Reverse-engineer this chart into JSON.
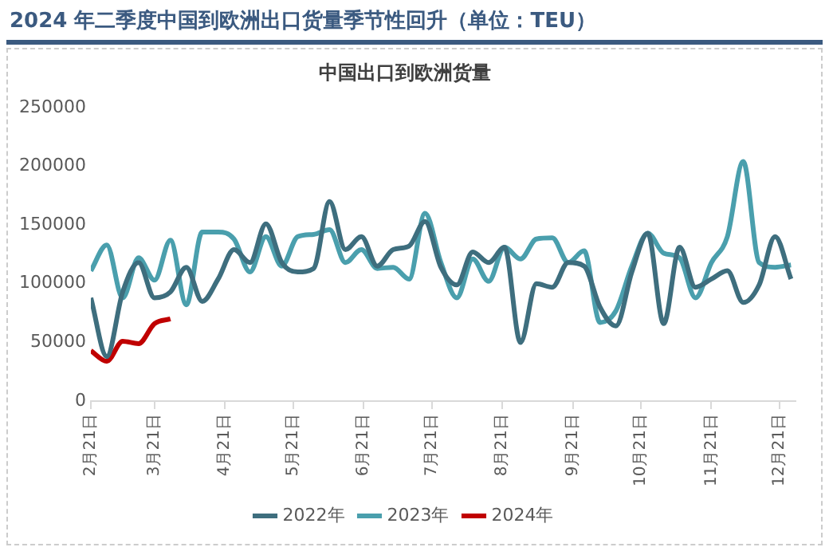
{
  "chart_data": {
    "type": "line",
    "title": "2024 年二季度中国到欧洲出口货量季节性回升（单位：TEU）",
    "subtitle": "中国出口到欧洲货量",
    "x": [
      "--02-21",
      "--02-28",
      "--03-07",
      "--03-14",
      "--03-21",
      "--03-28",
      "--04-04",
      "--04-11",
      "--04-18",
      "--04-25",
      "--05-02",
      "--05-09",
      "--05-16",
      "--05-23",
      "--05-30",
      "--06-06",
      "--06-13",
      "--06-20",
      "--06-27",
      "--07-04",
      "--07-11",
      "--07-18",
      "--07-25",
      "--08-01",
      "--08-08",
      "--08-15",
      "--08-22",
      "--08-29",
      "--09-05",
      "--09-12",
      "--09-19",
      "--09-26",
      "--10-03",
      "--10-10",
      "--10-17",
      "--10-24",
      "--10-31",
      "--11-07",
      "--11-14",
      "--11-21",
      "--11-28",
      "--12-05",
      "--12-12",
      "--12-19",
      "--12-26"
    ],
    "series": [
      {
        "name": "2022年",
        "color": "#3e6e7e",
        "values": [
          88000,
          38000,
          93000,
          118000,
          88000,
          93000,
          114000,
          85000,
          104000,
          129000,
          118000,
          151000,
          118000,
          110000,
          113000,
          170000,
          129000,
          140000,
          115000,
          129000,
          132000,
          153000,
          114000,
          99000,
          127000,
          118000,
          131000,
          50000,
          100000,
          97000,
          118000,
          115000,
          80000,
          64000,
          110000,
          143000,
          66000,
          131000,
          97000,
          104000,
          111000,
          84000,
          99000,
          140000,
          104000
        ]
      },
      {
        "name": "2023年",
        "color": "#4a9fad",
        "values": [
          111000,
          133000,
          88000,
          122000,
          103000,
          137000,
          82000,
          144000,
          144000,
          138000,
          110000,
          140000,
          115000,
          140000,
          142000,
          146000,
          118000,
          129000,
          113000,
          114000,
          104000,
          160000,
          118000,
          88000,
          121000,
          102000,
          131000,
          121000,
          138000,
          139000,
          118000,
          128000,
          67000,
          77000,
          115000,
          143000,
          126000,
          122000,
          88000,
          118000,
          140000,
          204000,
          118000,
          114000,
          116000
        ]
      },
      {
        "name": "2024年",
        "color": "#c00000",
        "x": [
          "--02-21",
          "--02-28",
          "--03-07",
          "--03-14",
          "--03-21",
          "--03-28"
        ],
        "values": [
          43000,
          34000,
          51000,
          49000,
          66000,
          70000
        ]
      }
    ],
    "xlim": [
      "--02-21",
      "--12-28"
    ],
    "xticks": [
      {
        "value": "--02-21",
        "label": "2月21日"
      },
      {
        "value": "--03-21",
        "label": "3月21日"
      },
      {
        "value": "--04-21",
        "label": "4月21日"
      },
      {
        "value": "--05-21",
        "label": "5月21日"
      },
      {
        "value": "--06-21",
        "label": "6月21日"
      },
      {
        "value": "--07-21",
        "label": "7月21日"
      },
      {
        "value": "--08-21",
        "label": "8月21日"
      },
      {
        "value": "--09-21",
        "label": "9月21日"
      },
      {
        "value": "--10-21",
        "label": "10月21日"
      },
      {
        "value": "--11-21",
        "label": "11月21日"
      },
      {
        "value": "--12-21",
        "label": "12月21日"
      }
    ],
    "ylim": [
      0,
      250000
    ],
    "yticks": [
      0,
      50000,
      100000,
      150000,
      200000,
      250000
    ],
    "grid": false,
    "legend": "bottom",
    "marker": "none"
  }
}
